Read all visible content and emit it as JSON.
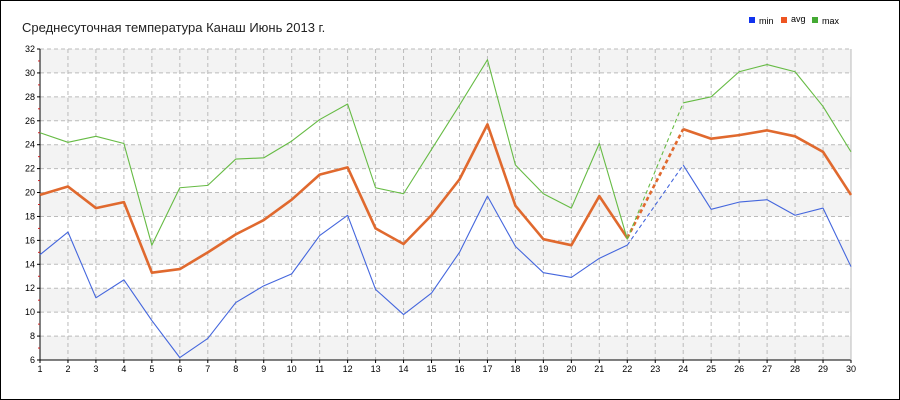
{
  "chart_data": {
    "type": "line",
    "title": "Среднесуточная температура Канаш  Июнь 2013 г.",
    "xlabel": "",
    "ylabel": "",
    "ylim": [
      6,
      32
    ],
    "yticks": [
      6,
      8,
      10,
      12,
      14,
      16,
      18,
      20,
      22,
      24,
      26,
      28,
      30,
      32
    ],
    "x": [
      1,
      2,
      3,
      4,
      5,
      6,
      7,
      8,
      9,
      10,
      11,
      12,
      13,
      14,
      15,
      16,
      17,
      18,
      19,
      20,
      21,
      22,
      23,
      24,
      25,
      26,
      27,
      28,
      29,
      30
    ],
    "missing_days": [
      23
    ],
    "grid": true,
    "legend_position": "top-right",
    "series": [
      {
        "name": "min",
        "color": "#4466dd",
        "legend_color": "#1133ee",
        "values": [
          14.8,
          16.7,
          11.2,
          12.7,
          9.3,
          6.2,
          7.8,
          10.8,
          12.2,
          13.2,
          16.4,
          18.1,
          11.9,
          9.8,
          11.6,
          15.0,
          19.7,
          15.5,
          13.3,
          12.9,
          14.5,
          15.6,
          null,
          22.3,
          18.6,
          19.2,
          19.4,
          18.1,
          18.7,
          13.8
        ]
      },
      {
        "name": "avg",
        "color": "#e0692e",
        "legend_color": "#ee5522",
        "values": [
          19.8,
          20.5,
          18.7,
          19.2,
          13.3,
          13.6,
          15.0,
          16.5,
          17.7,
          19.4,
          21.5,
          22.1,
          17.0,
          15.7,
          18.1,
          21.1,
          25.7,
          18.9,
          16.1,
          15.6,
          19.7,
          16.2,
          null,
          25.3,
          24.5,
          24.8,
          25.2,
          24.7,
          23.4,
          19.8
        ]
      },
      {
        "name": "max",
        "color": "#66bb44",
        "legend_color": "#44aa33",
        "values": [
          25.0,
          24.2,
          24.7,
          24.1,
          15.6,
          20.4,
          20.6,
          22.8,
          22.9,
          24.3,
          26.1,
          27.4,
          20.4,
          19.9,
          23.6,
          27.3,
          31.1,
          22.3,
          19.9,
          18.7,
          24.1,
          16.1,
          null,
          27.5,
          28.0,
          30.1,
          30.7,
          30.1,
          27.2,
          23.4
        ]
      }
    ]
  }
}
